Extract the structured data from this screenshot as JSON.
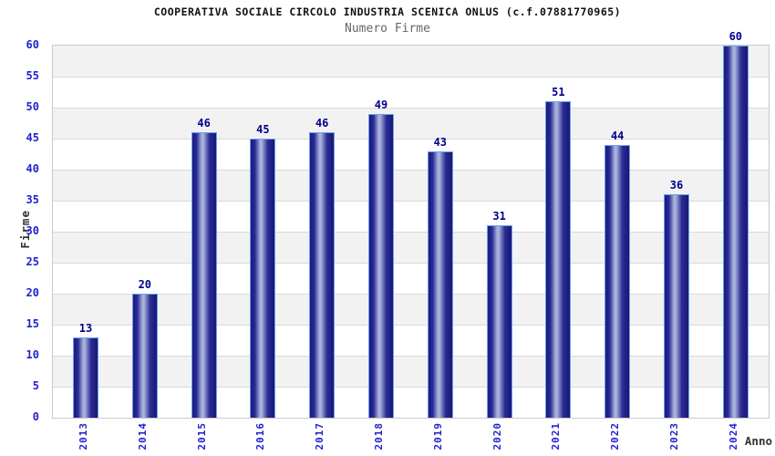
{
  "chart_data": {
    "type": "bar",
    "title": "COOPERATIVA SOCIALE CIRCOLO INDUSTRIA SCENICA ONLUS (c.f.07881770965)",
    "subtitle": "Numero Firme",
    "xlabel": "Anno",
    "ylabel": "Firme",
    "categories": [
      "2013",
      "2014",
      "2015",
      "2016",
      "2017",
      "2018",
      "2019",
      "2020",
      "2021",
      "2022",
      "2023",
      "2024"
    ],
    "values": [
      13,
      20,
      46,
      45,
      46,
      49,
      43,
      31,
      51,
      44,
      36,
      60
    ],
    "ylim": [
      0,
      60
    ],
    "ytick_step": 5,
    "grid": true,
    "legend": "none",
    "colors": {
      "title": "#111111",
      "subtitle": "#666666",
      "tick_label": "#2222cc",
      "value_label": "#00008b",
      "axis_label": "#333333",
      "band_gray": "#f2f2f2",
      "band_white": "#ffffff",
      "gridline": "#d9d9d9",
      "plot_border": "#c9c9c9",
      "bar_border": "#6aa2ee",
      "bar_gradient": [
        "#1a1a7e",
        "#2a2a96",
        "#a9b3dc",
        "#2b2b94",
        "#181876"
      ]
    }
  }
}
